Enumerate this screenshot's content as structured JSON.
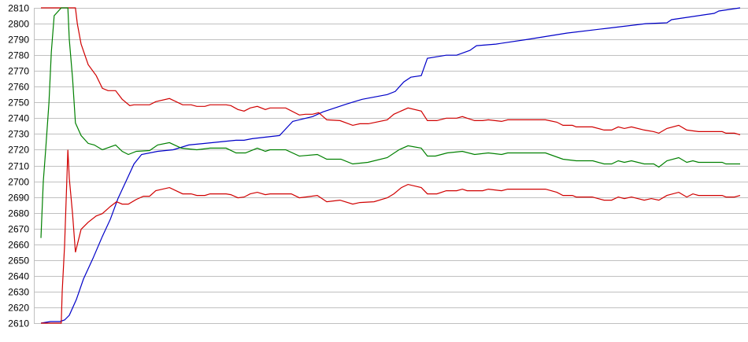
{
  "chart_data": {
    "type": "line",
    "title": "",
    "xlabel": "",
    "ylabel": "",
    "ylim": [
      2610,
      2810
    ],
    "xlim": [
      0,
      148
    ],
    "yticks": [
      "2810",
      "2800",
      "2790",
      "2780",
      "2770",
      "2760",
      "2750",
      "2740",
      "2730",
      "2720",
      "2710",
      "2700",
      "2690",
      "2680",
      "2670",
      "2660",
      "2650",
      "2640",
      "2630",
      "2620",
      "2610"
    ],
    "grid": true,
    "legend": "none",
    "series": [
      {
        "color": "#0000c8",
        "points": [
          [
            0,
            2610
          ],
          [
            2,
            2611
          ],
          [
            4,
            2611
          ],
          [
            5,
            2612
          ],
          [
            6,
            2615
          ],
          [
            7.5,
            2625
          ],
          [
            9,
            2638
          ],
          [
            11,
            2651
          ],
          [
            13,
            2665
          ],
          [
            14.7,
            2676
          ],
          [
            16.3,
            2689
          ],
          [
            18,
            2700
          ],
          [
            19.7,
            2711
          ],
          [
            21.3,
            2717
          ],
          [
            24.7,
            2719
          ],
          [
            28,
            2720
          ],
          [
            31.3,
            2723
          ],
          [
            34.7,
            2724
          ],
          [
            38,
            2725
          ],
          [
            41.3,
            2726
          ],
          [
            43,
            2726
          ],
          [
            44.7,
            2727
          ],
          [
            50.5,
            2729
          ],
          [
            53.3,
            2738
          ],
          [
            57.5,
            2741
          ],
          [
            59.7,
            2744
          ],
          [
            64.7,
            2749
          ],
          [
            68,
            2752
          ],
          [
            73.3,
            2755
          ],
          [
            75,
            2757
          ],
          [
            76.8,
            2763
          ],
          [
            78.3,
            2766
          ],
          [
            80.5,
            2767
          ],
          [
            81.8,
            2778
          ],
          [
            85.8,
            2780
          ],
          [
            88,
            2780
          ],
          [
            90.8,
            2783
          ],
          [
            92.2,
            2786
          ],
          [
            96.3,
            2787
          ],
          [
            103,
            2790
          ],
          [
            111.3,
            2794
          ],
          [
            119.7,
            2797
          ],
          [
            128,
            2800
          ],
          [
            132.5,
            2800.5
          ],
          [
            133.5,
            2802.5
          ],
          [
            142.5,
            2806.5
          ],
          [
            143.5,
            2808
          ],
          [
            148,
            2810
          ]
        ]
      },
      {
        "color": "#d00000",
        "points": [
          [
            0,
            2810
          ],
          [
            7.3,
            2810
          ],
          [
            7.7,
            2800
          ],
          [
            8.5,
            2787
          ],
          [
            10,
            2774
          ],
          [
            11.7,
            2767
          ],
          [
            13,
            2759
          ],
          [
            14.2,
            2757.5
          ],
          [
            15.8,
            2757.5
          ],
          [
            17.2,
            2752
          ],
          [
            18.8,
            2748
          ],
          [
            19.7,
            2748.5
          ],
          [
            23,
            2748.5
          ],
          [
            24.3,
            2750.5
          ],
          [
            27.2,
            2752.5
          ],
          [
            30,
            2748.5
          ],
          [
            31.8,
            2748.5
          ],
          [
            33,
            2747.5
          ],
          [
            34.7,
            2747.5
          ],
          [
            35.8,
            2748.5
          ],
          [
            39.2,
            2748.5
          ],
          [
            40.2,
            2748
          ],
          [
            41.7,
            2745.5
          ],
          [
            43,
            2744.5
          ],
          [
            44.3,
            2746.5
          ],
          [
            45.8,
            2747.5
          ],
          [
            47.5,
            2745.5
          ],
          [
            48.5,
            2746.5
          ],
          [
            51.8,
            2746.5
          ],
          [
            54.7,
            2742
          ],
          [
            56,
            2742.5
          ],
          [
            57.5,
            2742.5
          ],
          [
            58.8,
            2743.5
          ],
          [
            60.5,
            2739
          ],
          [
            63.3,
            2738.5
          ],
          [
            66,
            2735.5
          ],
          [
            67.5,
            2736.5
          ],
          [
            69.3,
            2736.5
          ],
          [
            73.3,
            2739
          ],
          [
            74.7,
            2742.5
          ],
          [
            77.7,
            2746.5
          ],
          [
            80.5,
            2744.5
          ],
          [
            81.8,
            2738.5
          ],
          [
            83.8,
            2738.5
          ],
          [
            85.8,
            2740
          ],
          [
            88,
            2740
          ],
          [
            89.2,
            2741
          ],
          [
            90.2,
            2740
          ],
          [
            91.8,
            2738.5
          ],
          [
            93.5,
            2738.5
          ],
          [
            94.7,
            2739
          ],
          [
            97.5,
            2738
          ],
          [
            98.8,
            2739
          ],
          [
            106.8,
            2739
          ],
          [
            109.2,
            2737.5
          ],
          [
            110.5,
            2735.5
          ],
          [
            112.5,
            2735.5
          ],
          [
            113.3,
            2734.5
          ],
          [
            116.7,
            2734.5
          ],
          [
            119.2,
            2732.5
          ],
          [
            120.8,
            2732.5
          ],
          [
            122.2,
            2734.5
          ],
          [
            123.5,
            2733.5
          ],
          [
            125,
            2734.5
          ],
          [
            127.7,
            2732.5
          ],
          [
            129.7,
            2731.5
          ],
          [
            130.8,
            2730.5
          ],
          [
            132.5,
            2733.5
          ],
          [
            135,
            2735.5
          ],
          [
            136.7,
            2732.5
          ],
          [
            139.2,
            2731.5
          ],
          [
            144.2,
            2731.5
          ],
          [
            145,
            2730.5
          ],
          [
            146.8,
            2730.5
          ],
          [
            148,
            2729.5
          ]
        ]
      },
      {
        "color": "#008000",
        "points": [
          [
            0,
            2664
          ],
          [
            0.5,
            2700
          ],
          [
            1,
            2720
          ],
          [
            1.7,
            2750
          ],
          [
            2.2,
            2782
          ],
          [
            2.8,
            2805
          ],
          [
            4.3,
            2810
          ],
          [
            5.7,
            2810
          ],
          [
            6,
            2790
          ],
          [
            6.7,
            2765
          ],
          [
            7.3,
            2737
          ],
          [
            8.5,
            2729
          ],
          [
            10,
            2724
          ],
          [
            11.3,
            2723
          ],
          [
            13,
            2720
          ],
          [
            15.8,
            2723
          ],
          [
            17.2,
            2719
          ],
          [
            18.5,
            2717
          ],
          [
            20.2,
            2719
          ],
          [
            23,
            2719.5
          ],
          [
            24.7,
            2723
          ],
          [
            27.2,
            2724.5
          ],
          [
            29.7,
            2721
          ],
          [
            33,
            2720
          ],
          [
            35.8,
            2721
          ],
          [
            39.2,
            2721
          ],
          [
            41.3,
            2718
          ],
          [
            43.3,
            2718
          ],
          [
            45.8,
            2721
          ],
          [
            47.5,
            2719
          ],
          [
            48.5,
            2720
          ],
          [
            51.8,
            2720
          ],
          [
            54.7,
            2716
          ],
          [
            58.5,
            2717
          ],
          [
            60.5,
            2714
          ],
          [
            63.5,
            2714
          ],
          [
            66,
            2711
          ],
          [
            69.2,
            2712
          ],
          [
            73.3,
            2715
          ],
          [
            75.8,
            2720
          ],
          [
            77.7,
            2722.5
          ],
          [
            80.5,
            2721
          ],
          [
            81.8,
            2716
          ],
          [
            83.5,
            2716
          ],
          [
            86,
            2718
          ],
          [
            89.2,
            2719
          ],
          [
            91.8,
            2717
          ],
          [
            94.7,
            2718
          ],
          [
            97.5,
            2717
          ],
          [
            98.8,
            2718
          ],
          [
            106.8,
            2718
          ],
          [
            110.5,
            2714
          ],
          [
            113.3,
            2713
          ],
          [
            116.8,
            2713
          ],
          [
            119.2,
            2711
          ],
          [
            120.8,
            2711
          ],
          [
            122.2,
            2713
          ],
          [
            123.5,
            2712
          ],
          [
            125,
            2713
          ],
          [
            127.7,
            2711
          ],
          [
            129.7,
            2711
          ],
          [
            130.8,
            2709
          ],
          [
            132.5,
            2713
          ],
          [
            135,
            2715
          ],
          [
            136.7,
            2712
          ],
          [
            138,
            2713
          ],
          [
            139.2,
            2712
          ],
          [
            144.2,
            2712
          ],
          [
            145,
            2711
          ],
          [
            148,
            2711
          ]
        ]
      },
      {
        "color": "#d00000",
        "points": [
          [
            0,
            2610
          ],
          [
            4.3,
            2610
          ],
          [
            4.5,
            2630
          ],
          [
            5,
            2659
          ],
          [
            5.3,
            2685
          ],
          [
            5.7,
            2720
          ],
          [
            6,
            2702
          ],
          [
            6.7,
            2679
          ],
          [
            7.3,
            2655
          ],
          [
            8.5,
            2669.5
          ],
          [
            10,
            2674
          ],
          [
            11.7,
            2678
          ],
          [
            13,
            2679.5
          ],
          [
            14.7,
            2684
          ],
          [
            16,
            2687
          ],
          [
            17.2,
            2685.5
          ],
          [
            18.5,
            2685.5
          ],
          [
            20.2,
            2688.5
          ],
          [
            21.7,
            2690.5
          ],
          [
            23,
            2690.5
          ],
          [
            24.3,
            2694
          ],
          [
            27.2,
            2696
          ],
          [
            30,
            2692
          ],
          [
            31.8,
            2692
          ],
          [
            33,
            2691
          ],
          [
            34.7,
            2691
          ],
          [
            35.8,
            2692
          ],
          [
            39.2,
            2692
          ],
          [
            40.2,
            2691.5
          ],
          [
            41.7,
            2689.5
          ],
          [
            43,
            2690
          ],
          [
            44.3,
            2692
          ],
          [
            45.8,
            2693
          ],
          [
            47.5,
            2691.5
          ],
          [
            48.5,
            2692
          ],
          [
            53,
            2692
          ],
          [
            54.7,
            2689.5
          ],
          [
            56,
            2690
          ],
          [
            58.5,
            2691
          ],
          [
            60.5,
            2687
          ],
          [
            63.3,
            2688
          ],
          [
            66,
            2685.5
          ],
          [
            67.5,
            2686.5
          ],
          [
            70.5,
            2687
          ],
          [
            73.3,
            2689.5
          ],
          [
            74.7,
            2692
          ],
          [
            76.3,
            2696
          ],
          [
            77.7,
            2698
          ],
          [
            80.5,
            2696
          ],
          [
            81.8,
            2692
          ],
          [
            83.8,
            2692
          ],
          [
            85.8,
            2694
          ],
          [
            88,
            2694
          ],
          [
            89.2,
            2695
          ],
          [
            90.2,
            2694
          ],
          [
            93.5,
            2694
          ],
          [
            94.7,
            2695
          ],
          [
            97.5,
            2694
          ],
          [
            98.8,
            2695
          ],
          [
            106.8,
            2695
          ],
          [
            109.2,
            2693
          ],
          [
            110.5,
            2691
          ],
          [
            112.5,
            2691
          ],
          [
            113.3,
            2690
          ],
          [
            116.7,
            2690
          ],
          [
            119.2,
            2688
          ],
          [
            120.8,
            2688
          ],
          [
            122.2,
            2690
          ],
          [
            123.5,
            2689
          ],
          [
            125,
            2690
          ],
          [
            127.7,
            2688
          ],
          [
            129.2,
            2689
          ],
          [
            130.8,
            2688
          ],
          [
            132.5,
            2691
          ],
          [
            135,
            2693
          ],
          [
            136.7,
            2690
          ],
          [
            138,
            2692
          ],
          [
            139.2,
            2691
          ],
          [
            144.2,
            2691
          ],
          [
            145,
            2690
          ],
          [
            146.8,
            2690
          ],
          [
            148,
            2691
          ]
        ]
      }
    ]
  }
}
